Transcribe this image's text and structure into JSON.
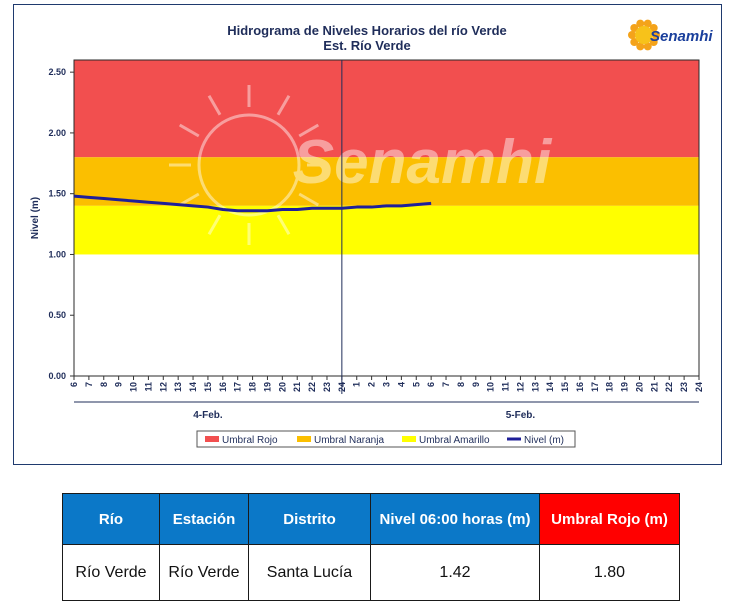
{
  "chart_data": {
    "type": "line",
    "title": "Hidrograma de Niveles Horarios del río Verde",
    "subtitle": "Est. Río Verde",
    "ylabel": "Nivel (m)",
    "xlabel": "",
    "ylim": [
      0,
      2.6
    ],
    "yticks": [
      "0.00",
      "0.50",
      "1.00",
      "1.50",
      "2.00",
      "2.50"
    ],
    "xticks": [
      "6",
      "7",
      "8",
      "9",
      "10",
      "11",
      "12",
      "13",
      "14",
      "15",
      "16",
      "17",
      "18",
      "19",
      "20",
      "21",
      "22",
      "23",
      "24",
      "1",
      "2",
      "3",
      "4",
      "5",
      "6",
      "7",
      "8",
      "9",
      "10",
      "11",
      "12",
      "13",
      "14",
      "15",
      "16",
      "17",
      "18",
      "19",
      "20",
      "21",
      "22",
      "23",
      "24"
    ],
    "date_labels": [
      "4-Feb.",
      "5-Feb."
    ],
    "grid": false,
    "legend_position": "bottom",
    "bands": [
      {
        "name": "Umbral Rojo",
        "from": 1.8,
        "to": 2.6,
        "color": "#f24f4f"
      },
      {
        "name": "Umbral Naranja",
        "from": 1.4,
        "to": 1.8,
        "color": "#fbbf00"
      },
      {
        "name": "Umbral Amarillo",
        "from": 1.0,
        "to": 1.4,
        "color": "#ffff00"
      }
    ],
    "series": [
      {
        "name": "Nivel (m)",
        "color": "#1f1f99",
        "x": [
          "6",
          "7",
          "8",
          "9",
          "10",
          "11",
          "12",
          "13",
          "14",
          "15",
          "16",
          "17",
          "18",
          "19",
          "20",
          "21",
          "22",
          "23",
          "24",
          "1",
          "2",
          "3",
          "4",
          "5",
          "6"
        ],
        "values": [
          1.48,
          1.47,
          1.46,
          1.45,
          1.44,
          1.43,
          1.42,
          1.41,
          1.4,
          1.39,
          1.37,
          1.36,
          1.36,
          1.36,
          1.37,
          1.37,
          1.38,
          1.38,
          1.38,
          1.39,
          1.39,
          1.4,
          1.4,
          1.41,
          1.42
        ]
      }
    ],
    "watermark": "Senamhi",
    "logo_text": "Senamhi"
  },
  "table": {
    "headers": [
      "Río",
      "Estación",
      "Distrito",
      "Nivel 06:00 horas (m)",
      "Umbral Rojo (m)"
    ],
    "row": [
      "Río Verde",
      "Río Verde",
      "Santa Lucía",
      "1.42",
      "1.80"
    ]
  }
}
